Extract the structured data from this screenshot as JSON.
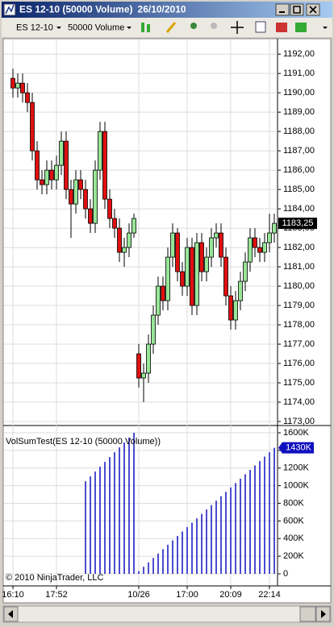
{
  "window": {
    "title": "ES 12-10 (50000 Volume)",
    "date": "26/10/2010"
  },
  "toolbar": {
    "instrument": "ES 12-10",
    "period": "50000 Volume"
  },
  "chart_data": [
    {
      "type": "candlestick",
      "categories": [
        "16:10",
        null,
        null,
        null,
        null,
        null,
        null,
        null,
        null,
        "17:52",
        null,
        null,
        null,
        null,
        null,
        null,
        null,
        null,
        null,
        null,
        null,
        null,
        null,
        null,
        null,
        null,
        "10/26",
        null,
        null,
        null,
        null,
        null,
        null,
        null,
        null,
        null,
        "17:00",
        null,
        null,
        null,
        null,
        null,
        null,
        null,
        null,
        "20:09",
        null,
        null,
        null,
        null,
        null,
        null,
        null,
        "22:14",
        null
      ],
      "open": [
        1190.75,
        1190.25,
        1190.5,
        1190,
        1189.5,
        1187,
        1185.5,
        1185.25,
        1186,
        1185.5,
        1186.25,
        1187.5,
        1185,
        1184.25,
        1185.5,
        1185,
        1184,
        1183.25,
        1186,
        1188,
        1184.5,
        1183.5,
        1183,
        1181.75,
        1182,
        1182.75,
        1176.5,
        1175.25,
        1175.5,
        1177,
        1178.5,
        1180,
        1179.25,
        1181.5,
        1182.75,
        1180.75,
        1180,
        1182,
        1179,
        1182.25,
        1180.75,
        1181.5,
        1182.5,
        1182.75,
        1181.5,
        1179.5,
        1178.25,
        1179.25,
        1180.25,
        1181.25,
        1182.5,
        1182,
        1181.75,
        1182.25,
        1182.75
      ],
      "high": [
        1191.25,
        1191,
        1191,
        1190.5,
        1190,
        1187.5,
        1186,
        1186.5,
        1186.5,
        1186.75,
        1188,
        1188,
        1185.5,
        1186,
        1186,
        1185.5,
        1184.5,
        1186.5,
        1188.5,
        1188.5,
        1185,
        1184,
        1183.5,
        1182.5,
        1183.25,
        1183.75,
        1177,
        1176,
        1177.5,
        1179,
        1180.5,
        1180.5,
        1182,
        1183.25,
        1183,
        1181.25,
        1182.5,
        1182.5,
        1182.75,
        1182.75,
        1182,
        1183,
        1183.25,
        1183.25,
        1182,
        1180,
        1179.75,
        1180.75,
        1181.75,
        1183,
        1183,
        1182.5,
        1182.75,
        1183.75,
        1183.75
      ],
      "low": [
        1189.75,
        1189.75,
        1189.5,
        1189,
        1186.5,
        1185,
        1184.75,
        1184.75,
        1185,
        1185,
        1185.75,
        1184.5,
        1182.5,
        1183.75,
        1184.5,
        1183.5,
        1182.75,
        1182.75,
        1185.5,
        1184,
        1183,
        1182.5,
        1181.25,
        1181,
        1181.5,
        1182.5,
        1174.75,
        1174,
        1175,
        1176.5,
        1178,
        1178.75,
        1178.75,
        1181,
        1180.25,
        1179.5,
        1179.5,
        1178.5,
        1178.5,
        1180.25,
        1180.25,
        1181,
        1182,
        1181,
        1179,
        1177.75,
        1177.75,
        1178.75,
        1179.75,
        1180.75,
        1181.5,
        1181.25,
        1181.25,
        1181.75,
        1182.25
      ],
      "close": [
        1190.25,
        1190.5,
        1190,
        1189.5,
        1187,
        1185.5,
        1185.25,
        1186,
        1185.5,
        1186.25,
        1187.5,
        1185,
        1184.25,
        1185.5,
        1185,
        1184,
        1183.25,
        1186,
        1188,
        1184.5,
        1183.5,
        1183,
        1181.75,
        1182,
        1182.75,
        1183.5,
        1175.25,
        1175.5,
        1177,
        1178.5,
        1180,
        1179.25,
        1181.5,
        1182.75,
        1180.75,
        1180,
        1182,
        1179,
        1182.25,
        1180.75,
        1181.5,
        1182.5,
        1182.75,
        1181.5,
        1179.5,
        1178.25,
        1179.25,
        1180.25,
        1181.25,
        1182.5,
        1182,
        1181.75,
        1182.25,
        1182.75,
        1183.25
      ],
      "value_labels": [
        null,
        null,
        null,
        null,
        null,
        null,
        null,
        null,
        null,
        null,
        null,
        null,
        null,
        null,
        null,
        null,
        null,
        null,
        null,
        null,
        null,
        null,
        null,
        null,
        null,
        null,
        null,
        null,
        null,
        null,
        null,
        null,
        null,
        null,
        null,
        null,
        null,
        null,
        null,
        null,
        null,
        null,
        null,
        null,
        null,
        null,
        null,
        null,
        null,
        null,
        null,
        null,
        null,
        null,
        "1183,25"
      ],
      "up_color": "#98e698",
      "down_color": "#e01010",
      "ylim": [
        1172.85,
        1192.8
      ],
      "yticks": [
        {
          "value": 1173,
          "label": "1173,00"
        },
        {
          "value": 1174,
          "label": "1174,00"
        },
        {
          "value": 1175,
          "label": "1175,00"
        },
        {
          "value": 1176,
          "label": "1176,00"
        },
        {
          "value": 1177,
          "label": "1177,00"
        },
        {
          "value": 1178,
          "label": "1178,00"
        },
        {
          "value": 1179,
          "label": "1179,00"
        },
        {
          "value": 1180,
          "label": "1180,00"
        },
        {
          "value": 1181,
          "label": "1181,00"
        },
        {
          "value": 1182,
          "label": "1182,00"
        },
        {
          "value": 1183,
          "label": "1183,00"
        },
        {
          "value": 1184,
          "label": "1184,00"
        },
        {
          "value": 1185,
          "label": "1185,00"
        },
        {
          "value": 1186,
          "label": "1186,00"
        },
        {
          "value": 1187,
          "label": "1187,00"
        },
        {
          "value": 1188,
          "label": "1188,00"
        },
        {
          "value": 1189,
          "label": "1189,00"
        },
        {
          "value": 1190,
          "label": "1190,00"
        },
        {
          "value": 1191,
          "label": "1191,00"
        },
        {
          "value": 1192,
          "label": "1192,00"
        }
      ],
      "grid": true
    },
    {
      "type": "bar",
      "title": "VolSumTest(ES 12-10 (50000 Volume))",
      "annotation": "© 2010 NinjaTrader, LLC",
      "values": [
        null,
        null,
        null,
        null,
        null,
        null,
        null,
        null,
        null,
        null,
        null,
        null,
        null,
        null,
        null,
        1050000,
        1105000,
        1160000,
        1215000,
        1270000,
        1325000,
        1380000,
        1435000,
        1490000,
        1545000,
        1600000,
        30000,
        80000,
        130000,
        180000,
        230000,
        280000,
        330000,
        380000,
        430000,
        480000,
        530000,
        580000,
        630000,
        680000,
        730000,
        780000,
        830000,
        880000,
        930000,
        980000,
        1030000,
        1080000,
        1130000,
        1180000,
        1230000,
        1280000,
        1330000,
        1380000,
        1430000
      ],
      "value_labels": [
        null,
        null,
        null,
        null,
        null,
        null,
        null,
        null,
        null,
        null,
        null,
        null,
        null,
        null,
        null,
        null,
        null,
        null,
        null,
        null,
        null,
        null,
        null,
        null,
        null,
        null,
        null,
        null,
        null,
        null,
        null,
        null,
        null,
        null,
        null,
        null,
        null,
        null,
        null,
        null,
        null,
        null,
        null,
        null,
        null,
        null,
        null,
        null,
        null,
        null,
        null,
        null,
        null,
        null,
        "1430K"
      ],
      "color": "#1010c0",
      "ylim": [
        -137000,
        1655000
      ],
      "yticks": [
        0,
        {
          "value": 200000,
          "label": "200K"
        },
        {
          "value": 400000,
          "label": "400K"
        },
        {
          "value": 600000,
          "label": "600K"
        },
        {
          "value": 800000,
          "label": "800K"
        },
        {
          "value": 1000000,
          "label": "1000K"
        },
        {
          "value": 1200000,
          "label": "1200K"
        },
        {
          "value": 1400000,
          "label": "1400K"
        },
        {
          "value": 1600000,
          "label": "1600K"
        }
      ],
      "grid": true
    }
  ]
}
